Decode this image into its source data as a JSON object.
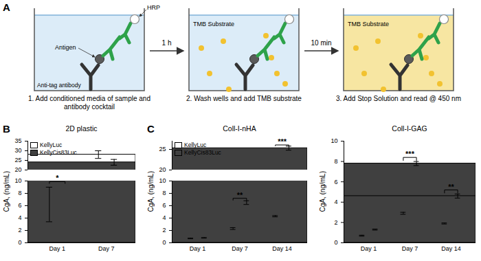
{
  "diagram": {
    "panel_label": "A",
    "steps": [
      {
        "caption": "1. Add conditioned media of sample and antibody cocktail",
        "labels": {
          "antigen": "Antigen",
          "enzyme": "HRP",
          "capture": "Anti-tag antibody"
        }
      },
      {
        "caption": "2. Wash wells and add TMB substrate",
        "labels": {
          "substrate": "TMB Substrate"
        }
      },
      {
        "caption": "3. Add Stop Solution and read @ 450 nm",
        "labels": {
          "substrate": "TMB Substrate"
        }
      }
    ],
    "arrows": [
      "1 h",
      "10 min"
    ]
  },
  "chart_data": [
    {
      "type": "bar",
      "panel_label": "B",
      "title": "2D plastic",
      "y_label": "CgA, (ng/mL)",
      "categories": [
        "Day 1",
        "Day 7"
      ],
      "series": [
        {
          "name": "KellyLuc",
          "color": "#ffffff",
          "values": [
            6.2,
            28
          ],
          "errors": [
            2.8,
            2
          ]
        },
        {
          "name": "KellyCis83Luc",
          "color": "#404040",
          "values": [
            9.5,
            24
          ],
          "errors": [
            null,
            1.5
          ]
        }
      ],
      "ylim": [
        0,
        35
      ],
      "ybreak": [
        10,
        20
      ],
      "yticks": [
        0,
        2,
        4,
        6,
        8,
        10,
        20,
        25,
        30,
        35
      ],
      "legend": "upper left",
      "annotations": [
        {
          "category": "Day 1",
          "text": "*"
        }
      ]
    },
    {
      "type": "bar",
      "panel_label": "C",
      "title": "Coll-I-nHA",
      "y_label": "CgA, (ng/mL)",
      "categories": [
        "Day 1",
        "Day 7",
        "Day 14"
      ],
      "series": [
        {
          "name": "KellyLuc",
          "color": "#ffffff",
          "values": [
            0.7,
            2.3,
            4.3
          ],
          "errors": [
            0.05,
            0.15,
            0.1
          ]
        },
        {
          "name": "KellyCis83Luc",
          "color": "#404040",
          "values": [
            0.8,
            6.5,
            25.3
          ],
          "errors": [
            0.05,
            0.3,
            0.5
          ]
        }
      ],
      "ylim": [
        0,
        27
      ],
      "ybreak": [
        10,
        20
      ],
      "yticks": [
        0,
        2,
        4,
        6,
        8,
        10,
        20,
        25
      ],
      "legend": "upper left",
      "annotations": [
        {
          "category": "Day 7",
          "text": "**"
        },
        {
          "category": "Day 14",
          "text": "***"
        }
      ]
    },
    {
      "type": "bar",
      "title": "Coll-I-GAG",
      "y_label": "CgA, (ng/mL)",
      "categories": [
        "Day 1",
        "Day 7",
        "Day 14"
      ],
      "series": [
        {
          "name": "KellyLuc",
          "color": "#ffffff",
          "values": [
            0.7,
            2.9,
            1.9
          ],
          "errors": [
            0.05,
            0.1,
            0.05
          ]
        },
        {
          "name": "KellyCis83Luc",
          "color": "#404040",
          "values": [
            1.3,
            7.8,
            4.6
          ],
          "errors": [
            0.05,
            0.2,
            0.2
          ]
        }
      ],
      "ylim": [
        0,
        10
      ],
      "yticks": [
        0,
        2,
        4,
        6,
        8,
        10
      ],
      "annotations": [
        {
          "category": "Day 7",
          "text": "***"
        },
        {
          "category": "Day 14",
          "text": "**"
        }
      ]
    }
  ]
}
